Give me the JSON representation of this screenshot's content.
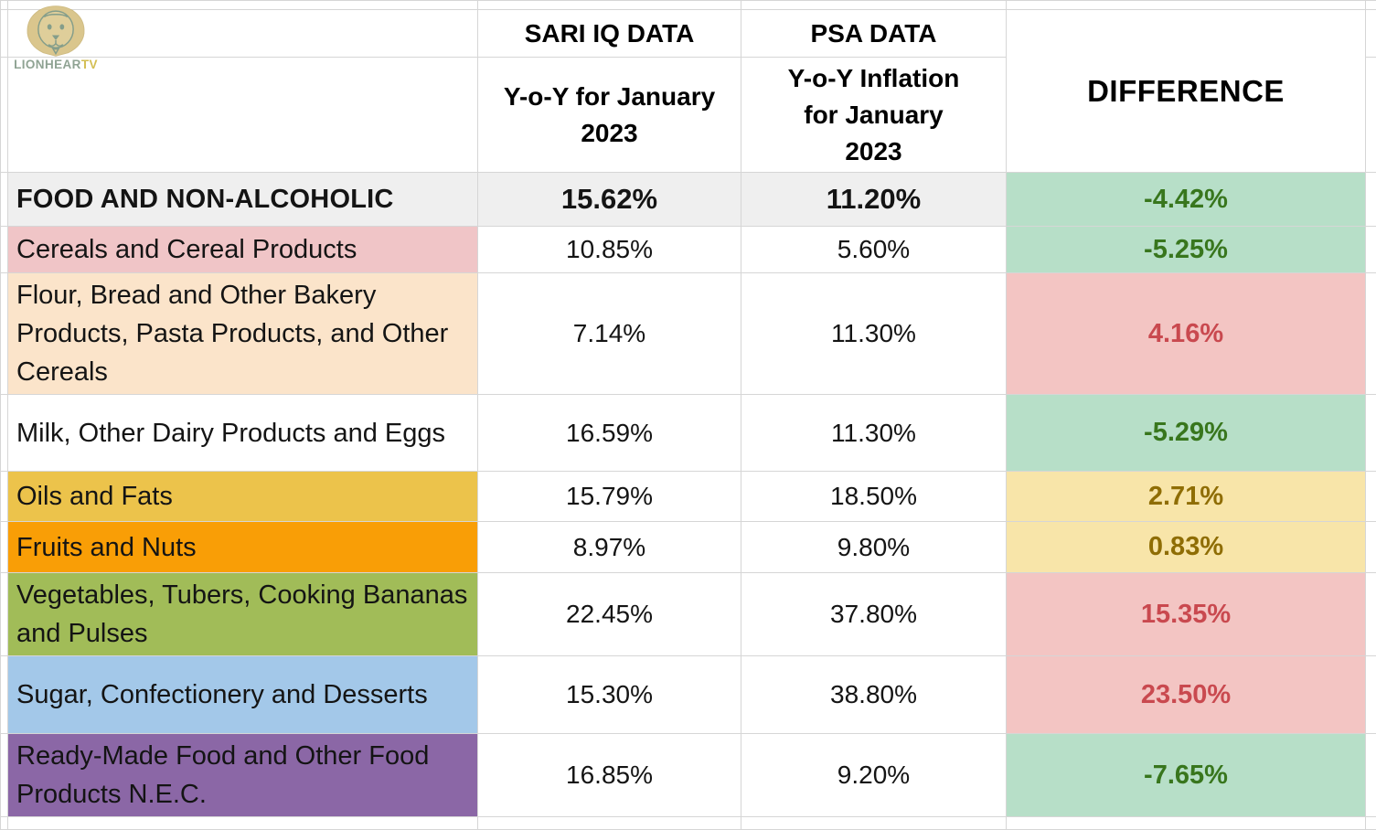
{
  "watermark": {
    "brand_prefix": "LIONHEAR",
    "brand_suffix": "TV",
    "mane_color": "#d9c489",
    "detail_color": "#7f9a86",
    "text_color": "#8ba08f",
    "suffix_color": "#d2bc4c"
  },
  "table": {
    "header": {
      "sari": "SARI IQ DATA",
      "psa": "PSA DATA",
      "sari_sub": "Y-o-Y for January 2023",
      "psa_sub": "Y-o-Y Inflation for January 2023",
      "difference": "DIFFERENCE"
    },
    "status_colors": {
      "better_bg": "#b7dfc8",
      "better_text": "#38761d",
      "worse_bg": "#f3c5c3",
      "worse_text": "#c9494f",
      "neutral_bg": "#f8e5a9",
      "neutral_text": "#8f6d04"
    },
    "rows": [
      {
        "label": "FOOD AND NON-ALCOHOLIC",
        "sari": "15.62%",
        "psa": "11.20%",
        "diff": "-4.42%",
        "emphasis": true,
        "label_bg": "#efefef",
        "value_bg": "#efefef",
        "diff_bg": "#b7dfc8",
        "diff_color": "#38761d"
      },
      {
        "label": "Cereals and Cereal Products",
        "sari": "10.85%",
        "psa": "5.60%",
        "diff": "-5.25%",
        "label_bg": "#f0c5c7",
        "value_bg": "#ffffff",
        "diff_bg": "#b7dfc8",
        "diff_color": "#38761d"
      },
      {
        "label": "Flour, Bread and Other Bakery Products, Pasta Products, and Other Cereals",
        "sari": "7.14%",
        "psa": "11.30%",
        "diff": "4.16%",
        "label_bg": "#fbe4ca",
        "value_bg": "#ffffff",
        "diff_bg": "#f3c5c3",
        "diff_color": "#c9494f"
      },
      {
        "label": "Milk, Other Dairy Products and Eggs",
        "sari": "16.59%",
        "psa": "11.30%",
        "diff": "-5.29%",
        "label_bg": "#ffffff",
        "value_bg": "#ffffff",
        "diff_bg": "#b7dfc8",
        "diff_color": "#38761d"
      },
      {
        "label": "Oils and Fats",
        "sari": "15.79%",
        "psa": "18.50%",
        "diff": "2.71%",
        "label_bg": "#ecc34b",
        "value_bg": "#ffffff",
        "diff_bg": "#f8e5a9",
        "diff_color": "#8f6d04"
      },
      {
        "label": "Fruits and Nuts",
        "sari": "8.97%",
        "psa": "9.80%",
        "diff": "0.83%",
        "label_bg": "#f99e06",
        "value_bg": "#ffffff",
        "diff_bg": "#f8e5a9",
        "diff_color": "#8f6d04"
      },
      {
        "label": "Vegetables, Tubers, Cooking Bananas and Pulses",
        "sari": "22.45%",
        "psa": "37.80%",
        "diff": "15.35%",
        "label_bg": "#a1bc58",
        "value_bg": "#ffffff",
        "diff_bg": "#f3c5c3",
        "diff_color": "#c9494f"
      },
      {
        "label": "Sugar, Confectionery and Desserts",
        "sari": "15.30%",
        "psa": "38.80%",
        "diff": "23.50%",
        "label_bg": "#a3c8e9",
        "value_bg": "#ffffff",
        "diff_bg": "#f3c5c3",
        "diff_color": "#c9494f"
      },
      {
        "label": "Ready-Made Food and Other Food Products N.E.C.",
        "sari": "16.85%",
        "psa": "9.20%",
        "diff": "-7.65%",
        "label_bg": "#8b67a6",
        "value_bg": "#ffffff",
        "diff_bg": "#b7dfc8",
        "diff_color": "#38761d"
      }
    ]
  }
}
